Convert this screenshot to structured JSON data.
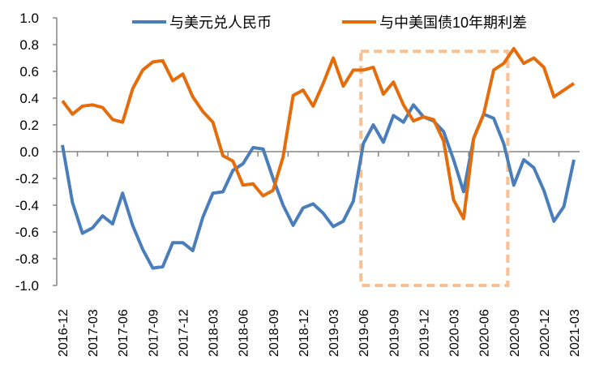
{
  "chart_data": {
    "type": "line",
    "title": "",
    "xlabel": "",
    "ylabel": "",
    "ylim": [
      -1.0,
      1.0
    ],
    "yticks": [
      "1.0",
      "0.8",
      "0.6",
      "0.4",
      "0.2",
      "0.0",
      "-0.2",
      "-0.4",
      "-0.6",
      "-0.8",
      "-1.0"
    ],
    "grid": false,
    "legend": "top",
    "x": [
      "2016-12",
      "2017-01",
      "2017-02",
      "2017-03",
      "2017-04",
      "2017-05",
      "2017-06",
      "2017-07",
      "2017-08",
      "2017-09",
      "2017-10",
      "2017-11",
      "2017-12",
      "2018-01",
      "2018-02",
      "2018-03",
      "2018-04",
      "2018-05",
      "2018-06",
      "2018-07",
      "2018-08",
      "2018-09",
      "2018-10",
      "2018-11",
      "2018-12",
      "2019-01",
      "2019-02",
      "2019-03",
      "2019-04",
      "2019-05",
      "2019-06",
      "2019-07",
      "2019-08",
      "2019-09",
      "2019-10",
      "2019-11",
      "2019-12",
      "2020-01",
      "2020-02",
      "2020-03",
      "2020-04",
      "2020-05",
      "2020-06",
      "2020-07",
      "2020-08",
      "2020-09",
      "2020-10",
      "2020-11",
      "2020-12",
      "2021-01",
      "2021-02",
      "2021-03"
    ],
    "xticks": [
      "2016-12",
      "2017-03",
      "2017-06",
      "2017-09",
      "2017-12",
      "2018-03",
      "2018-06",
      "2018-09",
      "2018-12",
      "2019-03",
      "2019-06",
      "2019-09",
      "2019-12",
      "2020-03",
      "2020-06",
      "2020-09",
      "2020-12",
      "2021-03"
    ],
    "series": [
      {
        "name": "与美元兑人民币",
        "color": "#4a7ebb",
        "values": [
          0.05,
          -0.38,
          -0.61,
          -0.57,
          -0.48,
          -0.54,
          -0.31,
          -0.55,
          -0.73,
          -0.87,
          -0.86,
          -0.68,
          -0.68,
          -0.74,
          -0.49,
          -0.31,
          -0.3,
          -0.14,
          -0.09,
          0.03,
          0.02,
          -0.2,
          -0.4,
          -0.55,
          -0.42,
          -0.39,
          -0.46,
          -0.56,
          -0.52,
          -0.37,
          0.06,
          0.2,
          0.07,
          0.27,
          0.22,
          0.35,
          0.26,
          0.23,
          0.15,
          -0.06,
          -0.3,
          0.1,
          0.28,
          0.25,
          0.06,
          -0.25,
          -0.06,
          -0.12,
          -0.29,
          -0.52,
          -0.41,
          -0.06
        ]
      },
      {
        "name": "与中美国债10年期利差",
        "color": "#e46c0a",
        "values": [
          0.38,
          0.28,
          0.34,
          0.35,
          0.33,
          0.24,
          0.22,
          0.47,
          0.61,
          0.67,
          0.68,
          0.53,
          0.58,
          0.41,
          0.3,
          0.22,
          -0.03,
          -0.07,
          -0.25,
          -0.24,
          -0.33,
          -0.29,
          -0.04,
          0.42,
          0.46,
          0.34,
          0.51,
          0.7,
          0.49,
          0.61,
          0.61,
          0.63,
          0.43,
          0.52,
          0.35,
          0.23,
          0.26,
          0.24,
          0.08,
          -0.36,
          -0.5,
          0.1,
          0.28,
          0.61,
          0.66,
          0.77,
          0.66,
          0.7,
          0.63,
          0.41,
          0.46,
          0.51
        ]
      }
    ],
    "annotations": [
      {
        "type": "dashed-rectangle",
        "color": "#fac090",
        "x_range": [
          "2019-06",
          "2020-08"
        ],
        "y_range": [
          -1.0,
          0.75
        ]
      }
    ]
  }
}
